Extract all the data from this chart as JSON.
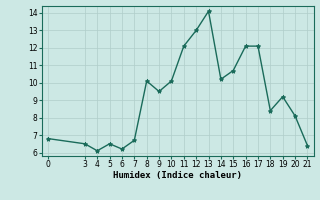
{
  "xlabel": "Humidex (Indice chaleur)",
  "x_values": [
    0,
    3,
    4,
    5,
    6,
    7,
    8,
    9,
    10,
    11,
    12,
    13,
    14,
    15,
    16,
    17,
    18,
    19,
    20,
    21
  ],
  "y_values": [
    6.8,
    6.5,
    6.1,
    6.5,
    6.2,
    6.7,
    10.1,
    9.5,
    10.1,
    12.1,
    13.0,
    14.1,
    10.2,
    10.7,
    12.1,
    12.1,
    8.4,
    9.2,
    8.1,
    6.4
  ],
  "line_color": "#1a6b5a",
  "marker": "*",
  "marker_size": 3,
  "bg_color": "#cce8e4",
  "grid_color": "#b0ceca",
  "xlim": [
    -0.5,
    21.5
  ],
  "ylim": [
    5.8,
    14.4
  ],
  "yticks": [
    6,
    7,
    8,
    9,
    10,
    11,
    12,
    13,
    14
  ],
  "xticks": [
    0,
    3,
    4,
    5,
    6,
    7,
    8,
    9,
    10,
    11,
    12,
    13,
    14,
    15,
    16,
    17,
    18,
    19,
    20,
    21
  ],
  "tick_fontsize": 5.5,
  "xlabel_fontsize": 6.5,
  "line_width": 1.0
}
